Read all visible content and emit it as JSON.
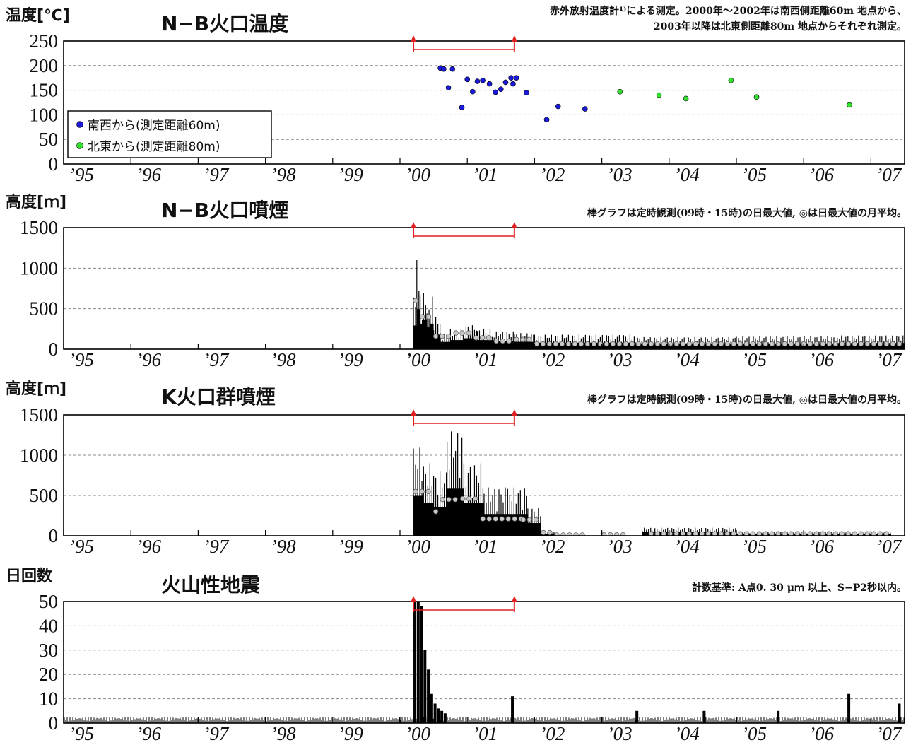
{
  "colors": {
    "southwest": "#1a1ad8",
    "northeast": "#33e02f",
    "monthly_avg": "#c8c8c8",
    "arrow": "#e02020",
    "bars": "#000000",
    "grid": "#888888"
  },
  "chart_data": [
    {
      "id": "temp",
      "type": "scatter",
      "ylabel": "温度[℃]",
      "title": "N−B火口温度",
      "note": [
        "赤外放射温度計¹⁾による測定。2000年〜2002年は南西側距離60m 地点から、",
        "2003年以降は北東側距離80m 地点からそれぞれ測定。"
      ],
      "ylim": [
        0,
        250
      ],
      "yticks": [
        0,
        50,
        100,
        150,
        200,
        250
      ],
      "xlim": [
        1995.0,
        2007.5
      ],
      "xtick_labels": [
        "’95",
        "’96",
        "’97",
        "’98",
        "’99",
        "’00",
        "’01",
        "’02",
        "’03",
        "’04",
        "’05",
        "’06",
        "’07"
      ],
      "grid": true,
      "legend_position": "left",
      "arrow_range": [
        2000.2,
        2001.7
      ],
      "series": [
        {
          "name": "南西から(測定距離60m)",
          "color": "#1a1ad8",
          "points": [
            [
              2000.6,
              195
            ],
            [
              2000.65,
              193
            ],
            [
              2000.72,
              155
            ],
            [
              2000.78,
              193
            ],
            [
              2000.92,
              115
            ],
            [
              2001.0,
              172
            ],
            [
              2001.08,
              147
            ],
            [
              2001.15,
              168
            ],
            [
              2001.23,
              170
            ],
            [
              2001.33,
              163
            ],
            [
              2001.42,
              146
            ],
            [
              2001.5,
              152
            ],
            [
              2001.57,
              166
            ],
            [
              2001.65,
              175
            ],
            [
              2001.68,
              163
            ],
            [
              2001.73,
              175
            ],
            [
              2001.88,
              145
            ],
            [
              2002.18,
              90
            ],
            [
              2002.35,
              117
            ],
            [
              2002.75,
              112
            ]
          ]
        },
        {
          "name": "北東から(測定距離80m)",
          "color": "#33e02f",
          "points": [
            [
              2003.27,
              147
            ],
            [
              2003.85,
              140
            ],
            [
              2004.25,
              133
            ],
            [
              2004.92,
              170
            ],
            [
              2005.3,
              136
            ],
            [
              2006.68,
              120
            ]
          ]
        }
      ]
    },
    {
      "id": "nb_plume",
      "type": "bar",
      "ylabel": "高度[ｍ]",
      "title": "N−B火口噴煙",
      "note": [
        "棒グラフは定時観測(09時・15時)の日最大値, ◎は日最大値の月平均。"
      ],
      "ylim": [
        0,
        1500
      ],
      "yticks": [
        0,
        500,
        1000,
        1500
      ],
      "xlim": [
        1995.0,
        2007.5
      ],
      "xtick_labels": [
        "’95",
        "’96",
        "’97",
        "’98",
        "’99",
        "’00",
        "’01",
        "’02",
        "’03",
        "’04",
        "’05",
        "’06",
        "’07"
      ],
      "grid": true,
      "arrow_range": [
        2000.2,
        2001.7
      ],
      "series": [
        {
          "name": "日最大値",
          "bars": [
            [
              2000.2,
              2000.25,
              650
            ],
            [
              2000.25,
              2000.3,
              1100
            ],
            [
              2000.3,
              2000.35,
              700
            ],
            [
              2000.35,
              2000.4,
              800
            ],
            [
              2000.4,
              2000.45,
              600
            ],
            [
              2000.45,
              2000.5,
              700
            ],
            [
              2000.5,
              2000.6,
              400
            ],
            [
              2000.6,
              2000.75,
              200
            ],
            [
              2000.75,
              2000.95,
              250
            ],
            [
              2000.95,
              2001.15,
              300
            ],
            [
              2001.15,
              2001.4,
              250
            ],
            [
              2001.4,
              2001.7,
              220
            ],
            [
              2001.7,
              2002.0,
              200
            ],
            [
              2002.0,
              2003.5,
              180
            ],
            [
              2003.5,
              2005.0,
              150
            ],
            [
              2005.0,
              2006.5,
              160
            ],
            [
              2006.5,
              2007.5,
              170
            ]
          ]
        },
        {
          "name": "月平均",
          "avg": [
            [
              2000.2,
              2000.3,
              600
            ],
            [
              2000.3,
              2000.5,
              400
            ],
            [
              2000.5,
              2000.8,
              160
            ],
            [
              2000.8,
              2001.1,
              200
            ],
            [
              2001.1,
              2001.4,
              140
            ],
            [
              2001.4,
              2001.7,
              100
            ],
            [
              2001.7,
              2002.0,
              120
            ],
            [
              2002.0,
              2007.5,
              65
            ]
          ]
        }
      ]
    },
    {
      "id": "k_plume",
      "type": "bar",
      "ylabel": "高度[ｍ]",
      "title": "K火口群噴煙",
      "note": [
        "棒グラフは定時観測(09時・15時)の日最大値, ◎は日最大値の月平均。"
      ],
      "ylim": [
        0,
        1500
      ],
      "yticks": [
        0,
        500,
        1000,
        1500
      ],
      "xlim": [
        1995.0,
        2007.5
      ],
      "xtick_labels": [
        "’95",
        "’96",
        "’97",
        "’98",
        "’99",
        "’00",
        "’01",
        "’02",
        "’03",
        "’04",
        "’05",
        "’06",
        "’07"
      ],
      "grid": true,
      "arrow_range": [
        2000.2,
        2001.7
      ],
      "series": [
        {
          "name": "日最大値",
          "bars": [
            [
              2000.2,
              2000.35,
              1100
            ],
            [
              2000.35,
              2000.5,
              900
            ],
            [
              2000.5,
              2000.7,
              800
            ],
            [
              2000.7,
              2000.95,
              1300
            ],
            [
              2000.95,
              2001.25,
              900
            ],
            [
              2001.25,
              2001.6,
              600
            ],
            [
              2001.6,
              2001.9,
              600
            ],
            [
              2001.9,
              2002.1,
              350
            ],
            [
              2002.1,
              2002.3,
              60
            ],
            [
              2002.3,
              2003.6,
              5
            ],
            [
              2003.6,
              2005.0,
              100
            ],
            [
              2005.0,
              2006.5,
              50
            ],
            [
              2006.5,
              2007.3,
              40
            ]
          ]
        },
        {
          "name": "月平均",
          "avg": [
            [
              2000.2,
              2000.5,
              550
            ],
            [
              2000.5,
              2000.6,
              300
            ],
            [
              2000.6,
              2000.9,
              450
            ],
            [
              2000.9,
              2001.2,
              460
            ],
            [
              2001.2,
              2001.8,
              210
            ],
            [
              2001.8,
              2002.1,
              200
            ],
            [
              2002.1,
              2002.3,
              40
            ],
            [
              2002.3,
              2002.8,
              10
            ],
            [
              3003.0,
              3003.1,
              0
            ],
            [
              2003.0,
              2003.4,
              12
            ],
            [
              2003.7,
              2007.3,
              25
            ]
          ]
        }
      ]
    },
    {
      "id": "quakes",
      "type": "bar",
      "ylabel": "日回数",
      "title": "火山性地震",
      "note": [
        "計数基準: A点0. 30 μｍ 以上、S−P2秒以内。"
      ],
      "ylim": [
        0,
        50
      ],
      "yticks": [
        0,
        10,
        20,
        30,
        40,
        50
      ],
      "xlim": [
        1995.0,
        2007.5
      ],
      "xtick_labels": [
        "’95",
        "’96",
        "’97",
        "’98",
        "’99",
        "’00",
        "’01",
        "’02",
        "’03",
        "’04",
        "’05",
        "’06",
        "’07"
      ],
      "grid": true,
      "arrow_range": [
        2000.2,
        2001.7
      ],
      "series": [
        {
          "name": "日回数",
          "peaks": [
            [
              2000.2,
              50
            ],
            [
              2000.25,
              50
            ],
            [
              2000.3,
              48
            ],
            [
              2000.35,
              30
            ],
            [
              2000.4,
              22
            ],
            [
              2000.45,
              12
            ],
            [
              2000.5,
              8
            ],
            [
              2000.55,
              6
            ],
            [
              2000.6,
              5
            ],
            [
              2000.65,
              4
            ],
            [
              2001.65,
              11
            ],
            [
              2003.5,
              5
            ],
            [
              2004.5,
              5
            ],
            [
              2005.6,
              5
            ],
            [
              2006.65,
              12
            ],
            [
              2007.4,
              8
            ]
          ],
          "baseline": 2
        }
      ]
    }
  ]
}
